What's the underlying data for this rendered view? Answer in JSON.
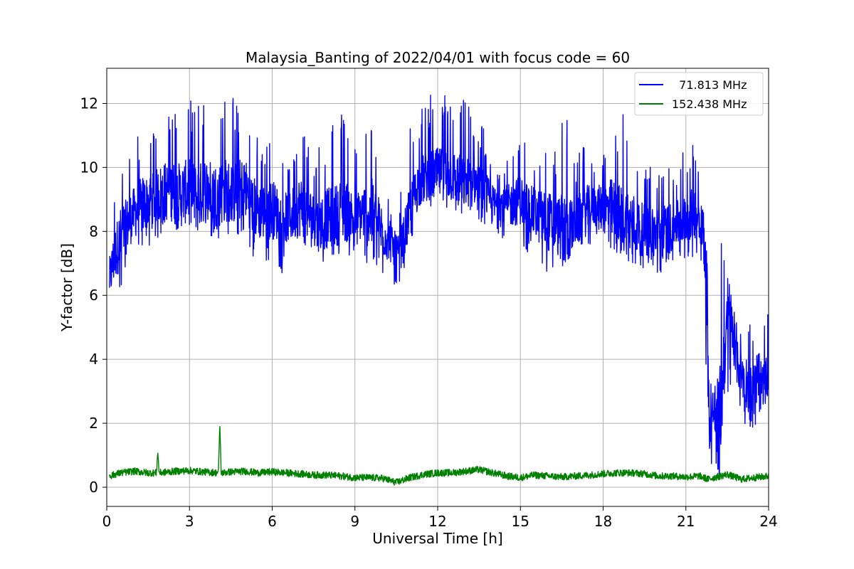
{
  "chart_data": {
    "type": "line",
    "title": "Malaysia_Banting of 2022/04/01 with focus code = 60",
    "xlabel": "Universal Time [h]",
    "ylabel": "Y-factor [dB]",
    "xlim": [
      0,
      24
    ],
    "ylim": [
      -0.6,
      13.1
    ],
    "xticks": [
      0,
      3,
      6,
      9,
      12,
      15,
      18,
      21,
      24
    ],
    "xtick_labels": [
      "0",
      "3",
      "6",
      "9",
      "12",
      "15",
      "18",
      "21",
      "24"
    ],
    "yticks": [
      0,
      2,
      4,
      6,
      8,
      10,
      12
    ],
    "ytick_labels": [
      "0",
      "2",
      "4",
      "6",
      "8",
      "10",
      "12"
    ],
    "grid": true,
    "legend_position": "top-right",
    "series": [
      {
        "name": "  71.813 MHz",
        "color": "#0000ff",
        "x": [
          0.1,
          0.3,
          0.5,
          0.8,
          1.0,
          1.3,
          1.6,
          2.0,
          2.3,
          2.6,
          3.0,
          3.3,
          3.6,
          4.0,
          4.3,
          4.6,
          5.0,
          5.3,
          5.6,
          6.0,
          6.3,
          6.6,
          7.0,
          7.3,
          7.6,
          8.0,
          8.3,
          8.6,
          9.0,
          9.3,
          9.6,
          10.0,
          10.3,
          10.6,
          11.0,
          11.3,
          11.6,
          12.0,
          12.3,
          12.6,
          13.0,
          13.3,
          13.6,
          14.0,
          14.3,
          14.6,
          15.0,
          15.3,
          15.6,
          16.0,
          16.3,
          16.6,
          17.0,
          17.3,
          17.6,
          18.0,
          18.3,
          18.6,
          19.0,
          19.3,
          19.6,
          20.0,
          20.3,
          20.6,
          21.0,
          21.3,
          21.6,
          21.75,
          21.85,
          22.0,
          22.2,
          22.4,
          22.6,
          22.8,
          23.0,
          23.2,
          23.4,
          23.6,
          23.8,
          24.0
        ],
        "y": [
          6.5,
          7.3,
          7.8,
          8.3,
          8.6,
          8.8,
          9.0,
          9.2,
          9.3,
          9.1,
          9.3,
          9.0,
          9.4,
          9.1,
          9.3,
          9.2,
          9.4,
          8.8,
          8.6,
          8.7,
          8.5,
          8.4,
          8.8,
          8.6,
          8.2,
          8.4,
          8.5,
          8.7,
          8.4,
          8.6,
          8.5,
          8.0,
          7.6,
          7.2,
          8.6,
          9.5,
          9.7,
          9.8,
          9.8,
          9.7,
          9.5,
          9.6,
          9.3,
          8.8,
          8.9,
          8.8,
          9.0,
          8.7,
          8.5,
          8.3,
          8.2,
          8.0,
          8.2,
          8.6,
          8.8,
          8.7,
          8.7,
          8.4,
          8.3,
          8.1,
          8.0,
          7.9,
          8.0,
          8.2,
          8.4,
          8.6,
          8.3,
          6.0,
          1.8,
          2.5,
          1.7,
          4.2,
          5.6,
          4.0,
          3.6,
          3.3,
          3.0,
          3.5,
          3.2,
          3.6
        ],
        "peak_y": [
          8.1,
          9.5,
          10.2,
          10.5,
          10.6,
          11.6,
          11.0,
          12.0,
          12.2,
          12.3,
          12.1,
          12.2,
          12.3,
          12.2,
          12.3,
          12.2,
          12.0,
          11.5,
          10.5,
          11.2,
          10.3,
          10.0,
          11.8,
          10.8,
          10.6,
          11.2,
          11.5,
          12.0,
          10.6,
          10.8,
          12.3,
          10.2,
          8.6,
          9.0,
          11.4,
          11.6,
          12.2,
          12.4,
          12.4,
          12.3,
          12.1,
          11.8,
          11.4,
          10.5,
          10.0,
          10.5,
          11.2,
          10.6,
          10.5,
          11.0,
          10.5,
          12.1,
          10.2,
          11.1,
          10.3,
          10.7,
          11.6,
          11.8,
          11.6,
          10.6,
          10.3,
          10.2,
          10.5,
          10.0,
          10.7,
          10.7,
          10.1,
          9.0,
          3.2,
          3.9,
          8.8,
          7.6,
          6.3,
          5.6,
          5.3,
          5.4,
          5.0,
          5.5,
          5.0,
          5.5
        ],
        "trough_y": [
          5.1,
          5.7,
          6.0,
          6.8,
          7.1,
          7.4,
          7.6,
          7.8,
          8.0,
          7.6,
          7.8,
          7.4,
          8.0,
          7.6,
          7.8,
          7.8,
          7.8,
          7.2,
          6.5,
          7.0,
          6.7,
          6.5,
          7.5,
          7.0,
          6.8,
          7.0,
          7.2,
          7.3,
          7.2,
          6.9,
          7.0,
          6.5,
          6.0,
          6.2,
          7.6,
          8.3,
          8.6,
          8.8,
          8.7,
          8.6,
          8.5,
          8.6,
          8.1,
          7.6,
          7.7,
          7.5,
          7.7,
          7.2,
          6.8,
          6.7,
          6.6,
          6.8,
          7.1,
          7.3,
          7.5,
          7.3,
          7.3,
          7.0,
          7.0,
          6.8,
          6.8,
          6.5,
          6.6,
          6.9,
          7.0,
          7.2,
          6.7,
          1.5,
          0.3,
          0.6,
          0.8,
          1.8,
          2.6,
          2.5,
          2.2,
          1.8,
          1.8,
          1.9,
          2.2,
          2.5
        ]
      },
      {
        "name": "152.438 MHz",
        "color": "#008000",
        "x": [
          0.1,
          0.5,
          1.0,
          1.5,
          1.8,
          1.85,
          1.9,
          2.5,
          3.0,
          3.5,
          4.05,
          4.1,
          4.15,
          4.5,
          5.0,
          5.5,
          6.0,
          6.5,
          7.0,
          7.5,
          8.0,
          8.5,
          9.0,
          9.5,
          10.0,
          10.5,
          11.0,
          11.5,
          12.0,
          12.5,
          13.0,
          13.5,
          14.0,
          14.5,
          15.0,
          15.5,
          16.0,
          16.5,
          17.0,
          17.5,
          18.0,
          18.5,
          19.0,
          19.5,
          20.0,
          20.5,
          21.0,
          21.5,
          21.8,
          22.0,
          22.5,
          23.0,
          23.5,
          24.0
        ],
        "y": [
          0.35,
          0.45,
          0.5,
          0.45,
          0.45,
          1.1,
          0.45,
          0.5,
          0.52,
          0.48,
          0.45,
          2.0,
          0.45,
          0.48,
          0.5,
          0.45,
          0.48,
          0.45,
          0.42,
          0.38,
          0.38,
          0.35,
          0.3,
          0.3,
          0.28,
          0.15,
          0.3,
          0.4,
          0.45,
          0.45,
          0.5,
          0.55,
          0.45,
          0.35,
          0.3,
          0.38,
          0.35,
          0.32,
          0.35,
          0.38,
          0.42,
          0.45,
          0.45,
          0.42,
          0.35,
          0.35,
          0.32,
          0.35,
          0.25,
          0.3,
          0.4,
          0.25,
          0.3,
          0.35
        ]
      }
    ]
  }
}
